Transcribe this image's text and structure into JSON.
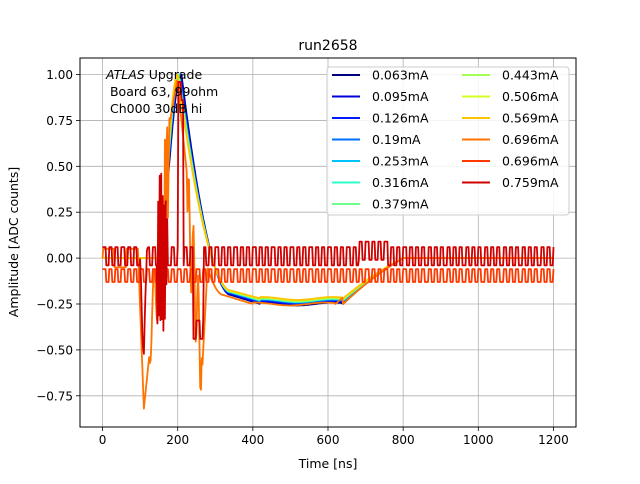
{
  "chart_data": {
    "type": "line",
    "title": "run2658",
    "xlabel": "Time [ns]",
    "ylabel": "Amplitude [ADC counts]",
    "xlim": [
      -60,
      1260
    ],
    "ylim": [
      -0.92,
      1.09
    ],
    "grid": true,
    "x_ticks": [
      0,
      200,
      400,
      600,
      800,
      1000,
      1200
    ],
    "y_ticks": [
      -0.75,
      -0.5,
      -0.25,
      0.0,
      0.25,
      0.5,
      0.75,
      1.0
    ],
    "x_tick_labels": [
      "0",
      "200",
      "400",
      "600",
      "800",
      "1000",
      "1200"
    ],
    "y_tick_labels": [
      "−0.75",
      "−0.50",
      "−0.25",
      "0.00",
      "0.25",
      "0.50",
      "0.75",
      "1.00"
    ],
    "annotation": {
      "line1_italic": "ATLAS",
      "line1_rest": " Upgrade",
      "line2": " Board 63, 99ohm",
      "line3": " Ch000 30dB hi"
    },
    "legend_position": "upper right",
    "legend_columns": 2,
    "series": [
      {
        "name": "0.063mA",
        "color": "#00007f",
        "kind": "pulse",
        "peak": 1.0,
        "peak_t": 210,
        "under": -0.25
      },
      {
        "name": "0.095mA",
        "color": "#0000d8",
        "kind": "pulse",
        "peak": 1.0,
        "peak_t": 208,
        "under": -0.245
      },
      {
        "name": "0.126mA",
        "color": "#0018ff",
        "kind": "pulse",
        "peak": 1.0,
        "peak_t": 206,
        "under": -0.24
      },
      {
        "name": "0.19mA",
        "color": "#0070ff",
        "kind": "pulse",
        "peak": 1.0,
        "peak_t": 205,
        "under": -0.235
      },
      {
        "name": "0.253mA",
        "color": "#00c4ff",
        "kind": "pulse",
        "peak": 1.0,
        "peak_t": 204,
        "under": -0.232
      },
      {
        "name": "0.316mA",
        "color": "#2cffca",
        "kind": "pulse",
        "peak": 1.0,
        "peak_t": 203,
        "under": -0.23
      },
      {
        "name": "0.379mA",
        "color": "#6dff8a",
        "kind": "pulse",
        "peak": 1.0,
        "peak_t": 202,
        "under": -0.228
      },
      {
        "name": "0.443mA",
        "color": "#a4ff53",
        "kind": "pulse",
        "peak": 1.0,
        "peak_t": 201,
        "under": -0.225
      },
      {
        "name": "0.506mA",
        "color": "#d4ff23",
        "kind": "pulse",
        "peak": 1.0,
        "peak_t": 200,
        "under": -0.222
      },
      {
        "name": "0.569mA",
        "color": "#ffc400",
        "kind": "pulse",
        "peak": 1.0,
        "peak_t": 200,
        "under": -0.22
      },
      {
        "name": "0.696mA",
        "color": "#ff7300",
        "kind": "orange",
        "peak": 1.0,
        "peak_t": 210,
        "under": -0.25
      },
      {
        "name": "0.696mA",
        "color": "#ff3800",
        "kind": "osc_low"
      },
      {
        "name": "0.759mA",
        "color": "#d10000",
        "kind": "osc_high"
      }
    ]
  }
}
